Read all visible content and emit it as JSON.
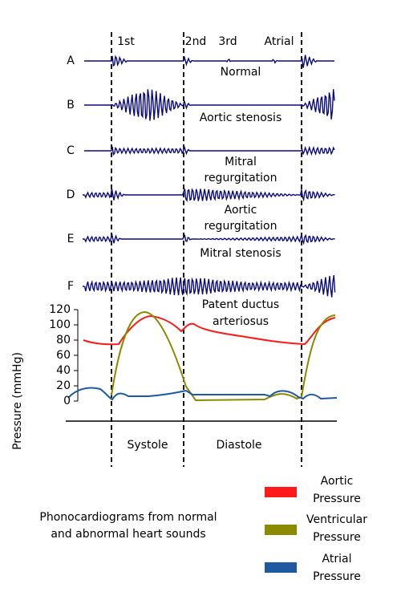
{
  "sounds": [
    "1st",
    "2nd",
    "3rd",
    "Atrial"
  ],
  "rows": [
    {
      "letter": "A",
      "label": [
        "Normal"
      ]
    },
    {
      "letter": "B",
      "label": [
        "Aortic stenosis"
      ]
    },
    {
      "letter": "C",
      "label": [
        "Mitral",
        "regurgitation"
      ]
    },
    {
      "letter": "D",
      "label": [
        "Aortic",
        "regurgitation"
      ]
    },
    {
      "letter": "E",
      "label": [
        "Mitral stenosis"
      ]
    },
    {
      "letter": "F",
      "label": [
        "Patent ductus",
        "arteriosus"
      ]
    }
  ],
  "pressure_axis": {
    "label": "Pressure (mmHg)",
    "ylim": [
      0,
      120
    ],
    "yticks": [
      0,
      20,
      40,
      60,
      80,
      100,
      120
    ]
  },
  "phases": [
    "Systole",
    "Diastole"
  ],
  "caption": [
    "Phonocardiograms from normal",
    "and abnormal heart sounds"
  ],
  "legend": [
    {
      "label": [
        "Aortic",
        "Pressure"
      ],
      "color": "#ff1a1a"
    },
    {
      "label": [
        "Ventricular",
        "Pressure"
      ],
      "color": "#8b8b00"
    },
    {
      "label": [
        "Atrial",
        "Pressure"
      ],
      "color": "#1f5aa0"
    }
  ]
}
